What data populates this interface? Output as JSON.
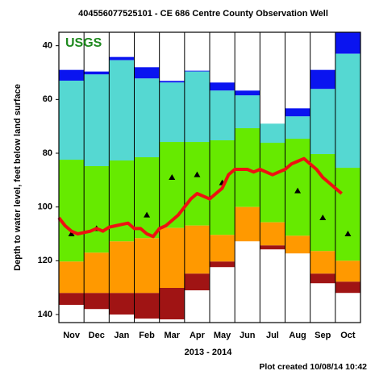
{
  "chart_data": {
    "type": "percentile-columns",
    "title": "404556077525101 - CE 686 Centre County Observation Well",
    "logo": "USGS",
    "y_label": "Depth to water level, feet below land surface",
    "x_label": "2013 - 2014",
    "footer": "Plot created 10/08/14 10:42",
    "categories": [
      "Nov",
      "Dec",
      "Jan",
      "Feb",
      "Mar",
      "Apr",
      "May",
      "Jun",
      "Jul",
      "Aug",
      "Sep",
      "Oct"
    ],
    "ylim": [
      35,
      143
    ],
    "y_inverted": true,
    "yticks": [
      40,
      60,
      80,
      100,
      120,
      140
    ],
    "series": [
      {
        "color": "#0a14f0",
        "values": [
          49,
          49.6,
          44.2,
          48,
          53.1,
          49.3,
          53.7,
          56.7,
          69,
          63.3,
          49,
          35
        ]
      },
      {
        "color": "#55d8d2",
        "values": [
          53,
          50.7,
          45.4,
          52.2,
          53.7,
          49.6,
          56.7,
          58.5,
          69,
          66.3,
          56.1,
          43
        ]
      },
      {
        "color": "#66ea00",
        "values": [
          82.4,
          84.8,
          82.7,
          81.5,
          75.8,
          75.8,
          75.2,
          70.7,
          76.1,
          74.6,
          80.3,
          85.4
        ]
      },
      {
        "color": "#ff9900",
        "values": [
          120.3,
          117,
          112.8,
          111.6,
          107.8,
          106.9,
          110.4,
          100,
          105.7,
          110.7,
          116.4,
          120
        ]
      },
      {
        "color": "#a01414",
        "values": [
          132,
          132,
          132,
          132,
          130.1,
          124.8,
          120.3,
          112.8,
          114.3,
          117.3,
          124.8,
          127.8
        ]
      },
      {
        "color": "#ffffff",
        "values": [
          136.4,
          138,
          140,
          141.5,
          141.8,
          131,
          122.4,
          112.8,
          115.8,
          117.3,
          128.4,
          132
        ]
      }
    ],
    "markers": {
      "color": "#000000",
      "values": [
        110,
        108,
        null,
        103,
        89,
        88,
        91,
        null,
        null,
        94,
        104,
        110
      ]
    },
    "line": {
      "color": "#ee1111",
      "values": [
        104,
        107,
        109,
        110,
        109.5,
        109,
        108,
        109,
        107.5,
        107,
        106.5,
        106,
        108,
        108,
        110,
        111,
        108,
        107,
        105,
        103,
        100,
        97,
        95,
        96,
        97,
        95,
        93,
        88,
        86,
        86,
        86,
        87,
        86,
        87,
        88,
        87,
        86,
        84,
        83,
        82,
        84,
        86,
        89,
        91,
        93,
        95
      ]
    }
  }
}
